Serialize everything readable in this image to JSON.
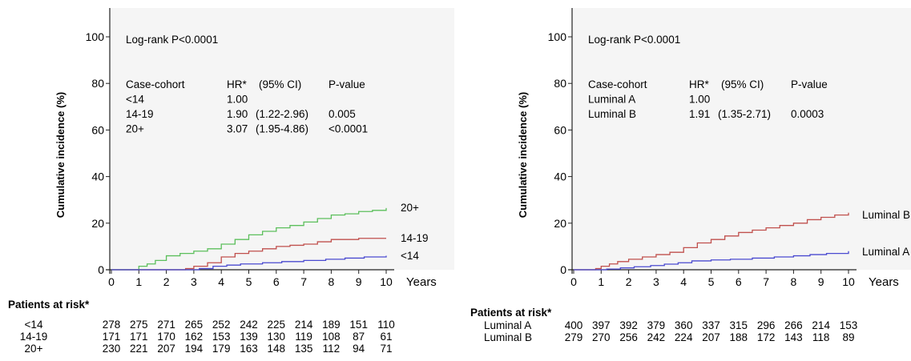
{
  "chart_data": [
    {
      "type": "line",
      "step": true,
      "ylabel": "Cumulative incidence (%)",
      "xlabel": "Years",
      "xlim": [
        0,
        10
      ],
      "ylim": [
        0,
        100
      ],
      "x_ticks": [
        0,
        1,
        2,
        3,
        4,
        5,
        6,
        7,
        8,
        9,
        10
      ],
      "y_ticks": [
        0,
        20,
        40,
        60,
        80,
        100
      ],
      "grid": false,
      "background": "#f5f5f5",
      "annotation": "Log-rank P<0.0001",
      "hr_table": {
        "headers": [
          "Case-cohort",
          "HR*",
          "(95% CI)",
          "P-value"
        ],
        "rows": [
          {
            "group": "<14",
            "hr": "1.00",
            "ci": "",
            "p": ""
          },
          {
            "group": "14-19",
            "hr": "1.90",
            "ci": "(1.22-2.96)",
            "p": "0.005"
          },
          {
            "group": "20+",
            "hr": "3.07",
            "ci": "(1.95-4.86)",
            "p": "<0.0001"
          }
        ]
      },
      "series": [
        {
          "name": "20+",
          "color": "#5cbf5c",
          "x": [
            0,
            1,
            1.3,
            1.6,
            2,
            2.5,
            3,
            3.5,
            4,
            4.5,
            5,
            5.5,
            6,
            6.5,
            7,
            7.5,
            8,
            8.5,
            9,
            9.5,
            10
          ],
          "y": [
            0,
            1.5,
            2.5,
            4,
            6,
            7,
            8,
            9,
            11,
            13,
            15,
            16.5,
            18,
            19,
            20.5,
            22,
            23.5,
            24,
            25,
            25.5,
            26.5
          ]
        },
        {
          "name": "14-19",
          "color": "#c0504d",
          "x": [
            0,
            2.7,
            3,
            3.5,
            4,
            4.5,
            5,
            5.5,
            6,
            6.5,
            7,
            7.5,
            8,
            8.5,
            9,
            10
          ],
          "y": [
            0,
            0.5,
            1.5,
            3,
            5.5,
            7,
            8,
            9,
            10,
            10.5,
            11,
            12,
            13,
            13,
            13.5,
            13.5
          ]
        },
        {
          "name": "<14",
          "color": "#4a4ad0",
          "x": [
            0,
            3.2,
            3.7,
            4.2,
            4.7,
            5.5,
            6.2,
            7,
            7.8,
            8.5,
            9.2,
            10
          ],
          "y": [
            0,
            0.5,
            1.5,
            2,
            2.5,
            3,
            3.5,
            4,
            4.5,
            5,
            5.5,
            6
          ]
        }
      ],
      "risk_table": {
        "title": "Patients at risk*",
        "rows": [
          {
            "label": "<14",
            "values": [
              "278",
              "275",
              "271",
              "265",
              "252",
              "242",
              "225",
              "214",
              "189",
              "151",
              "110"
            ]
          },
          {
            "label": "14-19",
            "values": [
              "171",
              "171",
              "170",
              "162",
              "153",
              "139",
              "130",
              "119",
              "108",
              "87",
              "61"
            ]
          },
          {
            "label": "20+",
            "values": [
              "230",
              "221",
              "207",
              "194",
              "179",
              "163",
              "148",
              "135",
              "112",
              "94",
              "71"
            ]
          }
        ]
      }
    },
    {
      "type": "line",
      "step": true,
      "ylabel": "Cumulative incidence (%)",
      "xlabel": "Years",
      "xlim": [
        0,
        10
      ],
      "ylim": [
        0,
        100
      ],
      "x_ticks": [
        0,
        1,
        2,
        3,
        4,
        5,
        6,
        7,
        8,
        9,
        10
      ],
      "y_ticks": [
        0,
        20,
        40,
        60,
        80,
        100
      ],
      "grid": false,
      "background": "#f5f5f5",
      "annotation": "Log-rank P<0.0001",
      "hr_table": {
        "headers": [
          "Case-cohort",
          "HR*",
          "(95% CI)",
          "P-value"
        ],
        "rows": [
          {
            "group": "Luminal A",
            "hr": "1.00",
            "ci": "",
            "p": ""
          },
          {
            "group": "Luminal B",
            "hr": "1.91",
            "ci": "(1.35-2.71)",
            "p": "0.0003"
          }
        ]
      },
      "series": [
        {
          "name": "Luminal B",
          "color": "#c0504d",
          "x": [
            0,
            0.8,
            1,
            1.3,
            1.6,
            2,
            2.5,
            3,
            3.5,
            4,
            4.5,
            5,
            5.5,
            6,
            6.5,
            7,
            7.5,
            8,
            8.5,
            9,
            9.5,
            10
          ],
          "y": [
            0,
            0.5,
            1.5,
            2.5,
            3.5,
            4.5,
            5.5,
            6.5,
            7.5,
            9.5,
            11.5,
            13,
            14.5,
            16,
            17,
            18,
            19,
            20,
            21.5,
            22.5,
            23.5,
            24.5
          ]
        },
        {
          "name": "Luminal A",
          "color": "#4a4ad0",
          "x": [
            0,
            1.2,
            1.7,
            2.2,
            2.8,
            3.3,
            3.8,
            4.3,
            5,
            5.7,
            6.5,
            7.3,
            8,
            8.6,
            9.2,
            10
          ],
          "y": [
            0,
            0.3,
            0.8,
            1.3,
            1.8,
            2.4,
            3,
            3.8,
            4.2,
            4.5,
            5,
            5.5,
            6,
            6.5,
            7,
            8
          ]
        }
      ],
      "risk_table": {
        "title": "Patients at risk*",
        "rows": [
          {
            "label": "Luminal A",
            "values": [
              "400",
              "397",
              "392",
              "379",
              "360",
              "337",
              "315",
              "296",
              "266",
              "214",
              "153"
            ]
          },
          {
            "label": "Luminal B",
            "values": [
              "279",
              "270",
              "256",
              "242",
              "224",
              "207",
              "188",
              "172",
              "143",
              "118",
              "89"
            ]
          }
        ]
      }
    }
  ]
}
